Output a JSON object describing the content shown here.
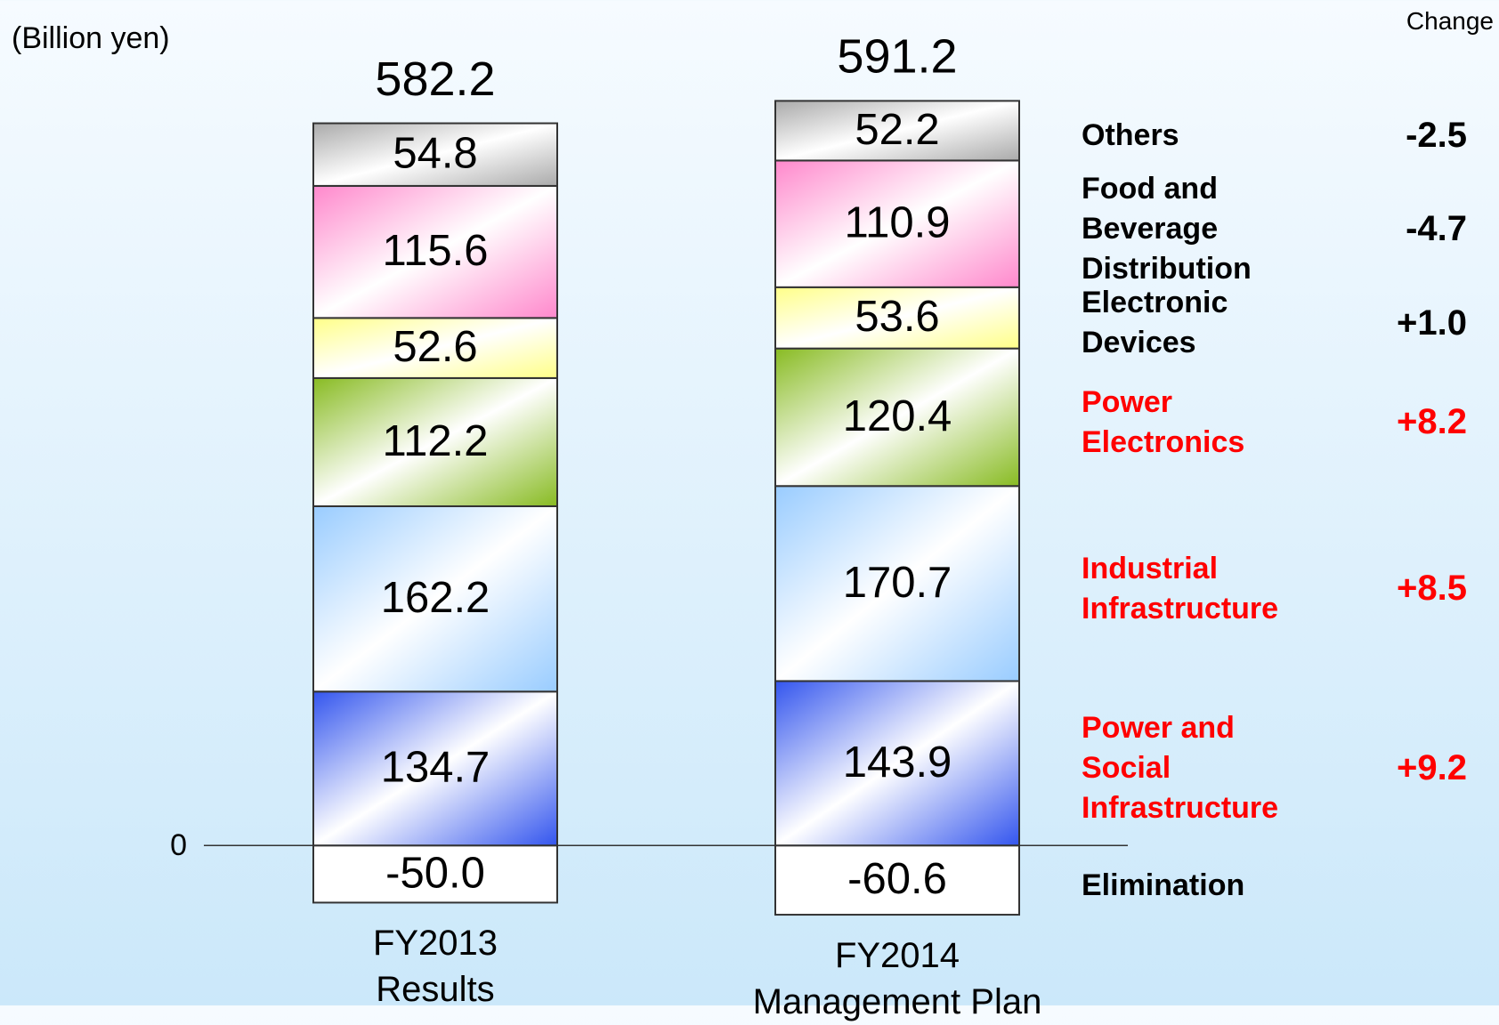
{
  "chart_data": {
    "type": "stacked-bar",
    "unit_label": "(Billion yen)",
    "categories": [
      "FY2013 Results",
      "FY2014 Management Plan"
    ],
    "totals": [
      582.2,
      591.2
    ],
    "series": [
      {
        "name": "Elimination",
        "color": "#ffffff",
        "name_color": "#000000",
        "values": [
          -50.0,
          -60.6
        ],
        "value_labels": [
          "-50.0",
          "-60.6"
        ]
      },
      {
        "name": "Power and Social Infrastructure",
        "color": "#3355ee",
        "name_color": "#ff0000",
        "values": [
          134.7,
          143.9
        ]
      },
      {
        "name": "Industrial Infrastructure",
        "color": "#99ccff",
        "name_color": "#ff0000",
        "values": [
          162.2,
          170.7
        ]
      },
      {
        "name": "Power Electronics",
        "color": "#88bb22",
        "name_color": "#ff0000",
        "values": [
          112.2,
          120.4
        ]
      },
      {
        "name": "Electronic Devices",
        "color": "#ffff88",
        "name_color": "#000000",
        "values": [
          52.6,
          53.6
        ]
      },
      {
        "name": "Food and Beverage Distribution",
        "color": "#ff88cc",
        "name_color": "#000000",
        "values": [
          115.6,
          110.9
        ]
      },
      {
        "name": "Others",
        "color": "#aaaaaa",
        "name_color": "#000000",
        "values": [
          54.8,
          52.2
        ]
      }
    ],
    "change": {
      "label": "Change",
      "values": [
        null,
        9.2,
        8.5,
        8.2,
        1.0,
        -4.7,
        -2.5
      ],
      "value_labels": [
        null,
        "+9.2",
        "+8.5",
        "+8.2",
        "+1.0",
        "-4.7",
        "-2.5"
      ]
    },
    "ylim": [
      -140,
      740
    ],
    "yticks": [
      0
    ]
  }
}
